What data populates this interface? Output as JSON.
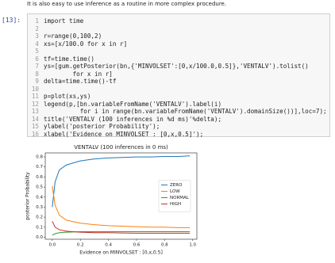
{
  "intro": "It is also easy to use inference as a routine in more complex procedure.",
  "prompt": "[13]:",
  "code": [
    {
      "n": 1,
      "text": "import time"
    },
    {
      "n": 2
    },
    {
      "n": 3,
      "text": "r=range(0,100,2)"
    },
    {
      "n": 4,
      "text": "xs=[x/100.0 for x in r]"
    },
    {
      "n": 5
    },
    {
      "n": 6,
      "text": "tf=time.time()"
    },
    {
      "n": 7,
      "text": "ys=[gum.getPosterior(bn,{'MINVOLSET':[0,x/100.0,0.5]},'VENTALV').tolist()"
    },
    {
      "n": 8,
      "text": "        for x in r]"
    },
    {
      "n": 9,
      "text": "delta=time.time()-tf"
    },
    {
      "n": 10
    },
    {
      "n": 11,
      "text": "p=plot(xs,ys)"
    },
    {
      "n": 12,
      "text": "legend(p,[bn.variableFromName('VENTALV').label(i)"
    },
    {
      "n": 13,
      "text": "          for i in range(bn.variableFromName('VENTALV').domainSize())],loc=7);"
    },
    {
      "n": 14,
      "text": "title('VENTALV (100 inferences in %d ms)'%delta);"
    },
    {
      "n": 15,
      "text": "ylabel('posterior Probability');"
    },
    {
      "n": 16,
      "text": "xlabel('Evidence on MINVOLSET : [0,x,0.5]');"
    }
  ],
  "chart_data": {
    "type": "line",
    "title": "VENTALV (100 inferences in 0 ms)",
    "y_label": "posterior Probability",
    "x_label": "Evidence on MINVOLSET : [0,x,0.5]",
    "x": [
      0,
      0.02,
      0.05,
      0.1,
      0.2,
      0.3,
      0.4,
      0.5,
      0.6,
      0.7,
      0.8,
      0.9,
      0.98
    ],
    "series": [
      {
        "name": "ZERO",
        "color": "#1f77b4",
        "values": [
          0.3,
          0.55,
          0.67,
          0.72,
          0.76,
          0.78,
          0.79,
          0.795,
          0.8,
          0.8,
          0.805,
          0.805,
          0.81
        ]
      },
      {
        "name": "LOW",
        "color": "#ff7f0e",
        "values": [
          0.51,
          0.32,
          0.22,
          0.17,
          0.14,
          0.125,
          0.115,
          0.11,
          0.105,
          0.1,
          0.1,
          0.095,
          0.095
        ]
      },
      {
        "name": "NORMAL",
        "color": "#2ca02c",
        "values": [
          0.02,
          0.035,
          0.045,
          0.05,
          0.055,
          0.055,
          0.055,
          0.055,
          0.055,
          0.055,
          0.055,
          0.055,
          0.055
        ]
      },
      {
        "name": "HIGH",
        "color": "#d62728",
        "values": [
          0.16,
          0.1,
          0.075,
          0.06,
          0.05,
          0.045,
          0.045,
          0.042,
          0.04,
          0.04,
          0.04,
          0.04,
          0.04
        ]
      }
    ],
    "xlim": [
      -0.05,
      1.03
    ],
    "ylim": [
      -0.02,
      0.84
    ],
    "xticks": [
      {
        "value": 0,
        "label": "0.0"
      },
      0.2,
      0.4,
      0.6,
      0.8,
      {
        "value": 1,
        "label": "1.0"
      }
    ],
    "yticks": [
      {
        "value": 0,
        "label": "0.0"
      },
      0.1,
      0.2,
      0.3,
      0.4,
      0.5,
      0.6,
      0.7,
      0.8
    ],
    "legend": "right"
  }
}
